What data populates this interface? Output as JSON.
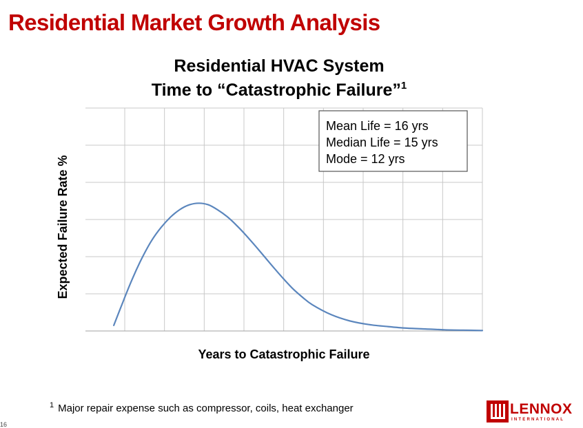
{
  "slide": {
    "title": "Residential Market Growth Analysis",
    "page_number": "16",
    "footnote_marker": "1",
    "footnote": "Major repair expense such as compressor, coils, heat exchanger",
    "logo_text": "LENNOX",
    "logo_subtext": "INTERNATIONAL",
    "brand_color": "#c00000"
  },
  "chart_data": {
    "type": "line",
    "title_line1": "Residential HVAC System",
    "title_line2": "Time to “Catastrophic Failure”",
    "title_superscript": "1",
    "xlabel": "Years to Catastrophic Failure",
    "ylabel": "Expected Failure Rate %",
    "x_tick_labels": false,
    "y_tick_labels": false,
    "grid": true,
    "grid_columns": 9,
    "grid_rows": 6,
    "annotations": [
      "Mean Life = 16 yrs",
      "Median Life = 15 yrs",
      "Mode = 12 yrs"
    ],
    "annotation_placement": "top-right",
    "series": [
      {
        "color": "#5b86bd",
        "x": [
          3,
          4,
          5,
          6,
          7,
          8,
          9,
          10,
          11,
          12,
          13,
          14,
          15,
          16,
          17,
          18,
          19,
          20,
          21,
          22,
          23,
          24,
          26,
          28,
          30,
          32,
          34,
          36,
          38,
          40,
          42
        ],
        "y": [
          0.14,
          0.75,
          1.33,
          1.84,
          2.27,
          2.6,
          2.86,
          3.05,
          3.17,
          3.21,
          3.17,
          3.04,
          2.87,
          2.65,
          2.4,
          2.13,
          1.85,
          1.57,
          1.3,
          1.05,
          0.84,
          0.66,
          0.41,
          0.25,
          0.16,
          0.11,
          0.07,
          0.05,
          0.03,
          0.02,
          0.01
        ]
      }
    ],
    "xlim": [
      0,
      42
    ],
    "ylim": [
      0,
      5.6
    ]
  }
}
